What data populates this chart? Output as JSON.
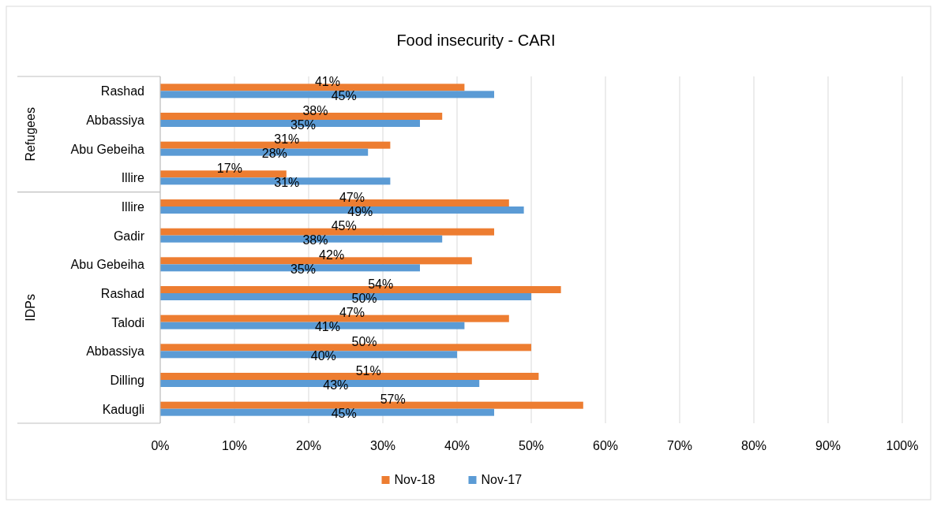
{
  "chart_data": {
    "type": "bar",
    "orientation": "horizontal",
    "title": "Food insecurity - CARI",
    "categories": [
      "Rashad",
      "Abbassiya",
      "Abu Gebeiha",
      "Illire",
      "Illire",
      "Gadir",
      "Abu Gebeiha",
      "Rashad",
      "Talodi",
      "Abbassiya",
      "Dilling",
      "Kadugli"
    ],
    "series": [
      {
        "name": "Nov-18",
        "color": "#ed7d31",
        "values": [
          41,
          38,
          31,
          17,
          47,
          45,
          42,
          54,
          47,
          50,
          51,
          57
        ],
        "value_labels": [
          "41%",
          "38%",
          "31%",
          "17%",
          "47%",
          "45%",
          "42%",
          "54%",
          "47%",
          "50%",
          "51%",
          "57%"
        ]
      },
      {
        "name": "Nov-17",
        "color": "#5b9bd5",
        "values": [
          45,
          35,
          28,
          31,
          49,
          38,
          35,
          50,
          41,
          40,
          43,
          45
        ],
        "value_labels": [
          "45%",
          "35%",
          "28%",
          "31%",
          "49%",
          "38%",
          "35%",
          "50%",
          "41%",
          "40%",
          "43%",
          "45%"
        ]
      }
    ],
    "annotations": [
      "Refugees",
      "IDPs"
    ],
    "xlim": [
      0,
      100
    ],
    "xticks": [
      {
        "value": 0,
        "label": "0%"
      },
      {
        "value": 10,
        "label": "10%"
      },
      {
        "value": 20,
        "label": "20%"
      },
      {
        "value": 30,
        "label": "30%"
      },
      {
        "value": 40,
        "label": "40%"
      },
      {
        "value": 50,
        "label": "50%"
      },
      {
        "value": 60,
        "label": "60%"
      },
      {
        "value": 70,
        "label": "70%"
      },
      {
        "value": 80,
        "label": "80%"
      },
      {
        "value": 90,
        "label": "90%"
      },
      {
        "value": 100,
        "label": "100%"
      }
    ],
    "grid": "x",
    "legend": "bottom"
  }
}
